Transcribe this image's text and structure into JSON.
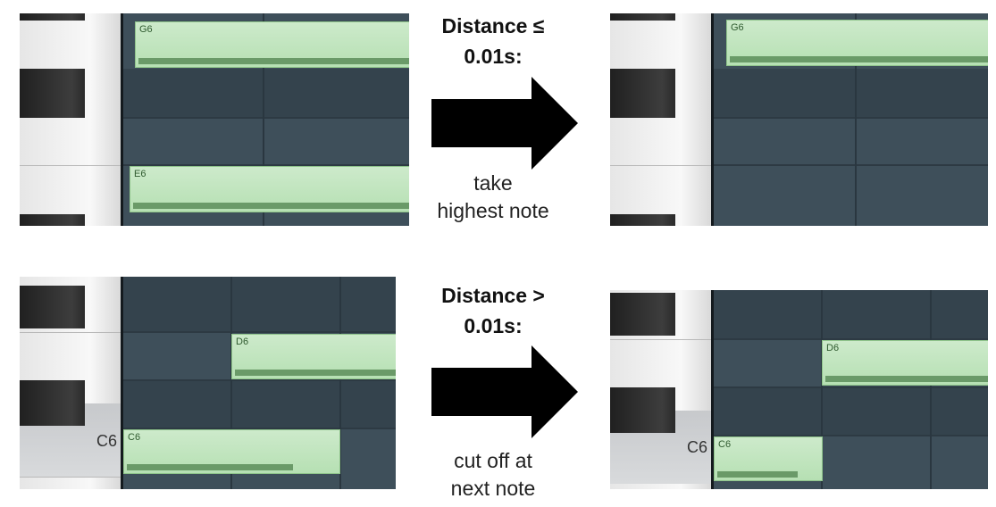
{
  "top_row": {
    "heading_line1": "Distance ≤",
    "heading_line2": "0.01s:",
    "caption_line1": "take",
    "caption_line2": "highest note",
    "before": {
      "notes": [
        "G6",
        "E6"
      ]
    },
    "after": {
      "notes": [
        "G6"
      ]
    }
  },
  "bottom_row": {
    "heading_line1": "Distance >",
    "heading_line2": "0.01s:",
    "caption_line1": "cut off at",
    "caption_line2": "next note",
    "before": {
      "key_label": "C6",
      "notes": [
        "D6",
        "C6"
      ]
    },
    "after": {
      "key_label": "C6",
      "notes": [
        "D6",
        "C6"
      ]
    }
  },
  "colors": {
    "note_fill": "#c4e6c1",
    "grid_bg": "#3a4a55",
    "arrow": "#000000"
  }
}
